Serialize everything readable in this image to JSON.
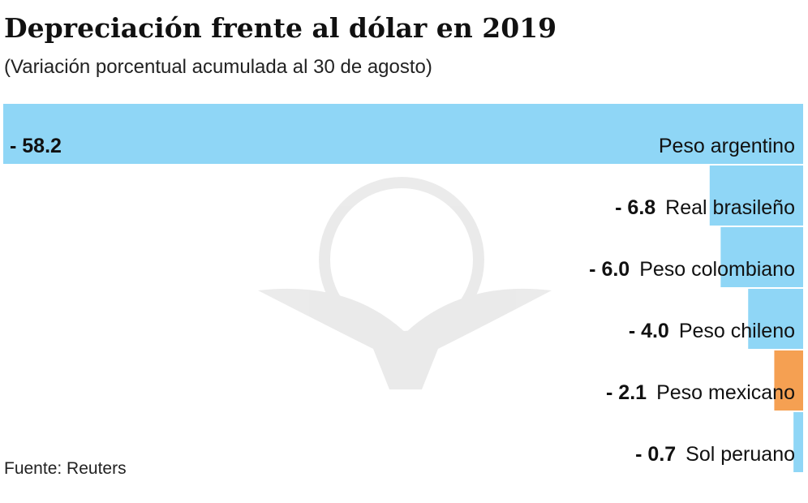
{
  "chart_data": {
    "type": "bar",
    "title": "Depreciación frente al dólar en 2019",
    "subtitle": "(Variación porcentual acumulada al 30 de agosto)",
    "source": "Fuente: Reuters",
    "categories": [
      "Peso argentino",
      "Real brasileño",
      "Peso colombiano",
      "Peso chileno",
      "Peso mexicano",
      "Sol peruano"
    ],
    "values": [
      -58.2,
      -6.8,
      -6.0,
      -4.0,
      -2.1,
      -0.7
    ],
    "value_labels": [
      "- 58.2",
      "- 6.8",
      "- 6.0",
      "- 4.0",
      "- 2.1",
      "- 0.7"
    ],
    "colors": [
      "#8fd6f6",
      "#8fd6f6",
      "#8fd6f6",
      "#8fd6f6",
      "#f5a052",
      "#8fd6f6"
    ],
    "xlim": [
      -58.2,
      0
    ]
  }
}
